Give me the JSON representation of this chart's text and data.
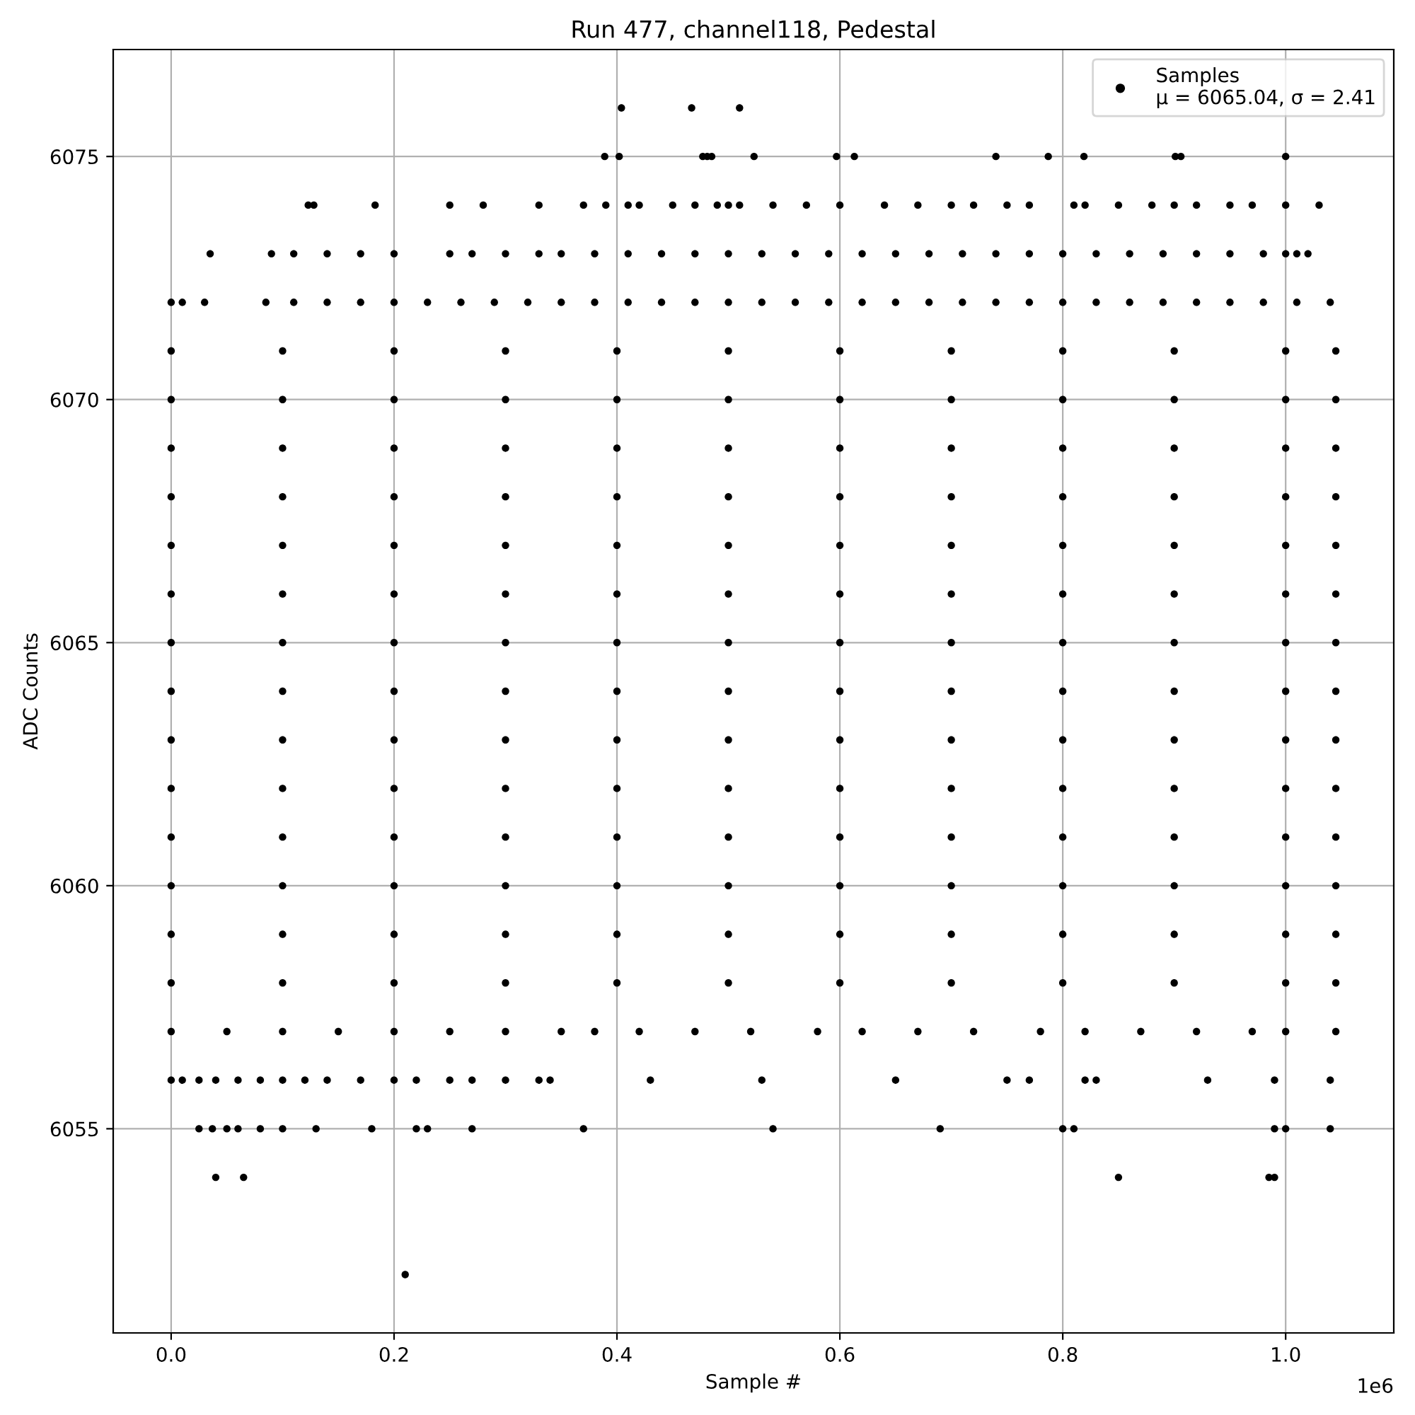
{
  "chart_data": {
    "type": "scatter",
    "title": "Run 477, channel118, Pedestal",
    "xlabel": "Sample #",
    "ylabel": "ADC Counts",
    "annotations": [
      "1e6"
    ],
    "xlim": [
      -0.052,
      1.097
    ],
    "xticks": [
      {
        "value": 0,
        "label": "0.0"
      },
      0.2,
      0.4,
      0.6,
      0.8,
      {
        "value": 1,
        "label": "1.0"
      }
    ],
    "ylim": [
      6050.8,
      6077.2
    ],
    "yticks": [
      6055,
      6060,
      6065,
      6070,
      6075
    ],
    "grid": true,
    "legend": "top right",
    "marker": "circle",
    "series": [
      {
        "name": "Samples\nμ = 6065.04, σ = 2.41",
        "color": "#000000",
        "x": [
          0.404,
          0.467,
          0.51,
          0.389,
          0.402,
          0.477,
          0.481,
          0.485,
          0.523,
          0.597,
          0.613,
          0.74,
          0.787,
          0.819,
          0.901,
          0.906,
          1.0,
          0.123,
          0.128,
          0.183,
          0.25,
          0.28,
          0.33,
          0.37,
          0.39,
          0.41,
          0.42,
          0.45,
          0.47,
          0.49,
          0.5,
          0.51,
          0.54,
          0.57,
          0.6,
          0.64,
          0.67,
          0.7,
          0.72,
          0.75,
          0.77,
          0.81,
          0.82,
          0.85,
          0.88,
          0.9,
          0.92,
          0.95,
          0.97,
          1.0,
          1.03,
          0.035,
          0.09,
          0.11,
          0.14,
          0.17,
          0.2,
          0.25,
          0.27,
          0.3,
          0.33,
          0.35,
          0.38,
          0.41,
          0.44,
          0.47,
          0.5,
          0.53,
          0.56,
          0.59,
          0.62,
          0.65,
          0.68,
          0.71,
          0.74,
          0.77,
          0.8,
          0.83,
          0.86,
          0.89,
          0.92,
          0.95,
          0.98,
          1.0,
          1.01,
          1.02,
          0.0,
          0.01,
          0.03,
          0.085,
          0.11,
          0.14,
          0.17,
          0.2,
          0.23,
          0.26,
          0.29,
          0.32,
          0.35,
          0.38,
          0.41,
          0.44,
          0.47,
          0.5,
          0.53,
          0.56,
          0.59,
          0.62,
          0.65,
          0.68,
          0.71,
          0.74,
          0.77,
          0.8,
          0.83,
          0.86,
          0.89,
          0.92,
          0.95,
          0.98,
          1.01,
          1.04,
          0,
          0.1,
          0.2,
          0.3,
          0.4,
          0.5,
          0.6,
          0.7,
          0.8,
          0.9,
          1.0,
          1.045,
          0,
          0.1,
          0.2,
          0.3,
          0.4,
          0.5,
          0.6,
          0.7,
          0.8,
          0.9,
          1.0,
          1.045,
          0,
          0.1,
          0.2,
          0.3,
          0.4,
          0.5,
          0.6,
          0.7,
          0.8,
          0.9,
          1.0,
          1.045,
          0,
          0.1,
          0.2,
          0.3,
          0.4,
          0.5,
          0.6,
          0.7,
          0.8,
          0.9,
          1.0,
          1.045,
          0,
          0.1,
          0.2,
          0.3,
          0.4,
          0.5,
          0.6,
          0.7,
          0.8,
          0.9,
          1.0,
          1.045,
          0,
          0.1,
          0.2,
          0.3,
          0.4,
          0.5,
          0.6,
          0.7,
          0.8,
          0.9,
          1.0,
          1.045,
          0,
          0.1,
          0.2,
          0.3,
          0.4,
          0.5,
          0.6,
          0.7,
          0.8,
          0.9,
          1.0,
          1.045,
          0,
          0.1,
          0.2,
          0.3,
          0.4,
          0.5,
          0.6,
          0.7,
          0.8,
          0.9,
          1.0,
          1.045,
          0,
          0.1,
          0.2,
          0.3,
          0.4,
          0.5,
          0.6,
          0.7,
          0.8,
          0.9,
          1.0,
          1.045,
          0,
          0.1,
          0.2,
          0.3,
          0.4,
          0.5,
          0.6,
          0.7,
          0.8,
          0.9,
          1.0,
          1.045,
          0,
          0.1,
          0.2,
          0.3,
          0.4,
          0.5,
          0.6,
          0.7,
          0.8,
          0.9,
          1.0,
          1.045,
          0,
          0.1,
          0.2,
          0.3,
          0.4,
          0.5,
          0.6,
          0.7,
          0.8,
          0.9,
          1.0,
          1.045,
          0,
          0.1,
          0.2,
          0.3,
          0.4,
          0.5,
          0.6,
          0.7,
          0.8,
          0.9,
          1.0,
          1.045,
          0,
          0.1,
          0.2,
          0.3,
          0.4,
          0.5,
          0.6,
          0.7,
          0.8,
          0.9,
          1.0,
          1.045,
          0,
          0.05,
          0.1,
          0.15,
          0.2,
          0.25,
          0.3,
          0.35,
          0.38,
          0.42,
          0.47,
          0.52,
          0.58,
          0.62,
          0.67,
          0.72,
          0.78,
          0.82,
          0.87,
          0.92,
          0.97,
          1.0,
          1.045,
          0.0,
          0.01,
          0.025,
          0.04,
          0.06,
          0.08,
          0.1,
          0.12,
          0.14,
          0.17,
          0.2,
          0.22,
          0.25,
          0.27,
          0.3,
          0.33,
          0.34,
          0.43,
          0.53,
          0.65,
          0.75,
          0.77,
          0.82,
          0.83,
          0.93,
          0.99,
          1.04,
          0.025,
          0.037,
          0.05,
          0.06,
          0.08,
          0.1,
          0.13,
          0.18,
          0.22,
          0.23,
          0.27,
          0.37,
          0.54,
          0.69,
          0.8,
          0.81,
          0.99,
          1.0,
          1.04,
          0.04,
          0.065,
          0.85,
          0.985,
          0.99,
          0.21
        ],
        "values": [
          6076,
          6076,
          6076,
          6075,
          6075,
          6075,
          6075,
          6075,
          6075,
          6075,
          6075,
          6075,
          6075,
          6075,
          6075,
          6075,
          6075,
          6074,
          6074,
          6074,
          6074,
          6074,
          6074,
          6074,
          6074,
          6074,
          6074,
          6074,
          6074,
          6074,
          6074,
          6074,
          6074,
          6074,
          6074,
          6074,
          6074,
          6074,
          6074,
          6074,
          6074,
          6074,
          6074,
          6074,
          6074,
          6074,
          6074,
          6074,
          6074,
          6074,
          6074,
          6073,
          6073,
          6073,
          6073,
          6073,
          6073,
          6073,
          6073,
          6073,
          6073,
          6073,
          6073,
          6073,
          6073,
          6073,
          6073,
          6073,
          6073,
          6073,
          6073,
          6073,
          6073,
          6073,
          6073,
          6073,
          6073,
          6073,
          6073,
          6073,
          6073,
          6073,
          6073,
          6073,
          6073,
          6073,
          6072,
          6072,
          6072,
          6072,
          6072,
          6072,
          6072,
          6072,
          6072,
          6072,
          6072,
          6072,
          6072,
          6072,
          6072,
          6072,
          6072,
          6072,
          6072,
          6072,
          6072,
          6072,
          6072,
          6072,
          6072,
          6072,
          6072,
          6072,
          6072,
          6072,
          6072,
          6072,
          6072,
          6072,
          6072,
          6072,
          6071,
          6071,
          6071,
          6071,
          6071,
          6071,
          6071,
          6071,
          6071,
          6071,
          6071,
          6071,
          6070,
          6070,
          6070,
          6070,
          6070,
          6070,
          6070,
          6070,
          6070,
          6070,
          6070,
          6070,
          6069,
          6069,
          6069,
          6069,
          6069,
          6069,
          6069,
          6069,
          6069,
          6069,
          6069,
          6069,
          6068,
          6068,
          6068,
          6068,
          6068,
          6068,
          6068,
          6068,
          6068,
          6068,
          6068,
          6068,
          6067,
          6067,
          6067,
          6067,
          6067,
          6067,
          6067,
          6067,
          6067,
          6067,
          6067,
          6067,
          6066,
          6066,
          6066,
          6066,
          6066,
          6066,
          6066,
          6066,
          6066,
          6066,
          6066,
          6066,
          6065,
          6065,
          6065,
          6065,
          6065,
          6065,
          6065,
          6065,
          6065,
          6065,
          6065,
          6065,
          6064,
          6064,
          6064,
          6064,
          6064,
          6064,
          6064,
          6064,
          6064,
          6064,
          6064,
          6064,
          6063,
          6063,
          6063,
          6063,
          6063,
          6063,
          6063,
          6063,
          6063,
          6063,
          6063,
          6063,
          6062,
          6062,
          6062,
          6062,
          6062,
          6062,
          6062,
          6062,
          6062,
          6062,
          6062,
          6062,
          6061,
          6061,
          6061,
          6061,
          6061,
          6061,
          6061,
          6061,
          6061,
          6061,
          6061,
          6061,
          6060,
          6060,
          6060,
          6060,
          6060,
          6060,
          6060,
          6060,
          6060,
          6060,
          6060,
          6060,
          6059,
          6059,
          6059,
          6059,
          6059,
          6059,
          6059,
          6059,
          6059,
          6059,
          6059,
          6059,
          6058,
          6058,
          6058,
          6058,
          6058,
          6058,
          6058,
          6058,
          6058,
          6058,
          6058,
          6058,
          6057,
          6057,
          6057,
          6057,
          6057,
          6057,
          6057,
          6057,
          6057,
          6057,
          6057,
          6057,
          6057,
          6057,
          6057,
          6057,
          6057,
          6057,
          6057,
          6057,
          6057,
          6057,
          6057,
          6056,
          6056,
          6056,
          6056,
          6056,
          6056,
          6056,
          6056,
          6056,
          6056,
          6056,
          6056,
          6056,
          6056,
          6056,
          6056,
          6056,
          6056,
          6056,
          6056,
          6056,
          6056,
          6056,
          6056,
          6056,
          6056,
          6056,
          6055,
          6055,
          6055,
          6055,
          6055,
          6055,
          6055,
          6055,
          6055,
          6055,
          6055,
          6055,
          6055,
          6055,
          6055,
          6055,
          6055,
          6055,
          6055,
          6054,
          6054,
          6054,
          6054,
          6054,
          6052
        ]
      }
    ]
  }
}
